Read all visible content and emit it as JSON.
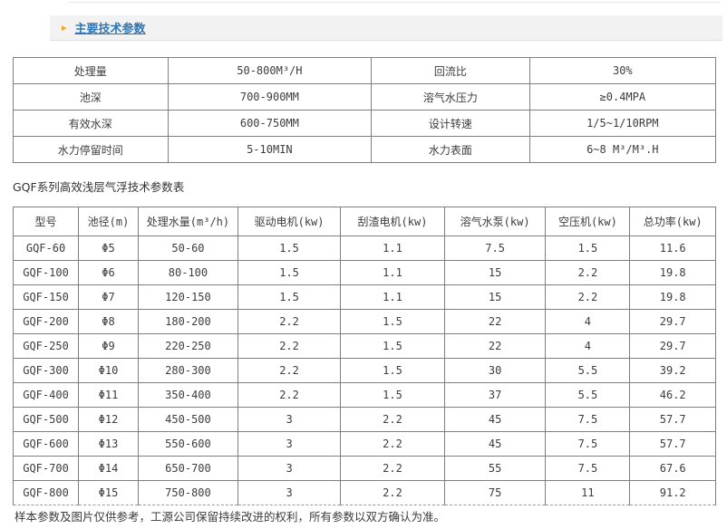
{
  "header": {
    "arrow_icon": "▸",
    "title": "主要技术参数"
  },
  "colors": {
    "accent_blue": "#2f76b5",
    "accent_orange": "#f0a30a",
    "header_bar_bg": "#f2f2f2",
    "table_border": "#7f7f7f"
  },
  "params_table": {
    "rows": [
      {
        "l1": "处理量",
        "v1": "50-800M³/H",
        "l2": "回流比",
        "v2": "30%"
      },
      {
        "l1": "池深",
        "v1": "700-900MM",
        "l2": "溶气水压力",
        "v2": "≥0.4MPA"
      },
      {
        "l1": "有效水深",
        "v1": "600-750MM",
        "l2": "设计转速",
        "v2": "1/5~1/10RPM"
      },
      {
        "l1": "水力停留时间",
        "v1": "5-10MIN",
        "l2": "水力表面",
        "v2": "6~8 M³/M³.H"
      }
    ]
  },
  "spec_table": {
    "caption": "GQF系列高效浅层气浮技术参数表",
    "headers": [
      "型号",
      "池径(m)",
      "处理水量(m³/h)",
      "驱动电机(kw)",
      "刮渣电机(kw)",
      "溶气水泵(kw)",
      "空压机(kw)",
      "总功率(kw)"
    ],
    "rows": [
      [
        "GQF-60",
        "Φ5",
        "50-60",
        "1.5",
        "1.1",
        "7.5",
        "1.5",
        "11.6"
      ],
      [
        "GQF-100",
        "Φ6",
        "80-100",
        "1.5",
        "1.1",
        "15",
        "2.2",
        "19.8"
      ],
      [
        "GQF-150",
        "Φ7",
        "120-150",
        "1.5",
        "1.1",
        "15",
        "2.2",
        "19.8"
      ],
      [
        "GQF-200",
        "Φ8",
        "180-200",
        "2.2",
        "1.5",
        "22",
        "4",
        "29.7"
      ],
      [
        "GQF-250",
        "Φ9",
        "220-250",
        "2.2",
        "1.5",
        "22",
        "4",
        "29.7"
      ],
      [
        "GQF-300",
        "Φ10",
        "280-300",
        "2.2",
        "1.5",
        "30",
        "5.5",
        "39.2"
      ],
      [
        "GQF-400",
        "Φ11",
        "350-400",
        "2.2",
        "1.5",
        "37",
        "5.5",
        "46.2"
      ],
      [
        "GQF-500",
        "Φ12",
        "450-500",
        "3",
        "2.2",
        "45",
        "7.5",
        "57.7"
      ],
      [
        "GQF-600",
        "Φ13",
        "550-600",
        "3",
        "2.2",
        "45",
        "7.5",
        "57.7"
      ],
      [
        "GQF-700",
        "Φ14",
        "650-700",
        "3",
        "2.2",
        "55",
        "7.5",
        "67.6"
      ],
      [
        "GQF-800",
        "Φ15",
        "750-800",
        "3",
        "2.2",
        "75",
        "11",
        "91.2"
      ]
    ]
  },
  "footer": {
    "note": "样本参数及图片仅供参考，工源公司保留持续改进的权利，所有参数以双方确认为准。"
  }
}
